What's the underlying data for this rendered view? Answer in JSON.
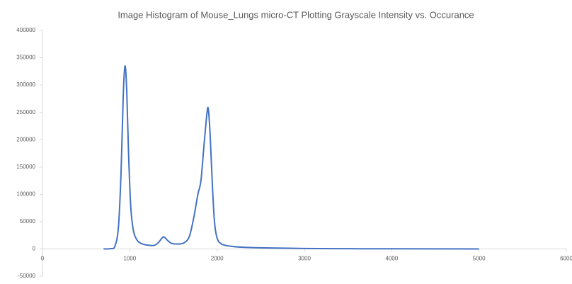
{
  "chart_data": {
    "type": "line",
    "title": "Image Histogram of Mouse_Lungs micro-CT Plotting Grayscale Intensity vs. Occurance",
    "x": [
      700,
      780,
      830,
      870,
      900,
      925,
      945,
      965,
      985,
      1010,
      1040,
      1080,
      1130,
      1200,
      1280,
      1330,
      1385,
      1430,
      1480,
      1550,
      1620,
      1680,
      1730,
      1780,
      1815,
      1850,
      1885,
      1900,
      1920,
      1945,
      1970,
      2000,
      2050,
      2150,
      2300,
      2500,
      3000,
      3500,
      4000,
      5000
    ],
    "series": [
      {
        "name": "Occurance",
        "color": "#4472c4",
        "values": [
          0,
          500,
          5000,
          40000,
          140000,
          280000,
          335000,
          290000,
          180000,
          80000,
          35000,
          17000,
          10000,
          7000,
          6500,
          12000,
          22000,
          16000,
          10000,
          9000,
          11000,
          22000,
          55000,
          100000,
          125000,
          190000,
          250000,
          255000,
          210000,
          120000,
          50000,
          20000,
          9000,
          5000,
          3000,
          2000,
          800,
          400,
          200,
          0
        ]
      }
    ],
    "xlim": [
      0,
      6000
    ],
    "xticks": [
      0,
      1000,
      2000,
      3000,
      4000,
      5000,
      6000
    ],
    "ylim": [
      -50000,
      400000
    ],
    "yticks": [
      -50000,
      0,
      50000,
      100000,
      150000,
      200000,
      250000,
      300000,
      350000,
      400000
    ],
    "grid": false
  }
}
